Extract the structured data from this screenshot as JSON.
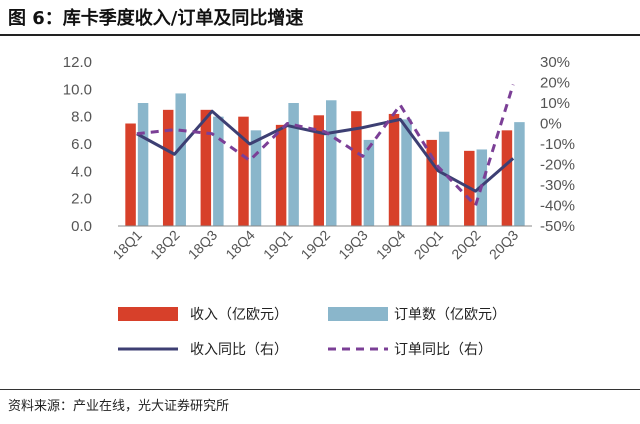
{
  "figure": {
    "title": "图 6：库卡季度收入/订单及同比增速",
    "source": "资料来源：产业在线，光大证券研究所"
  },
  "chart_data": {
    "type": "bar",
    "categories": [
      "18Q1",
      "18Q2",
      "18Q3",
      "18Q4",
      "19Q1",
      "19Q2",
      "19Q3",
      "19Q4",
      "20Q1",
      "20Q2",
      "20Q3"
    ],
    "y_left": {
      "ticks": [
        "0.0",
        "2.0",
        "4.0",
        "6.0",
        "8.0",
        "10.0",
        "12.0"
      ],
      "lim": [
        0,
        12
      ]
    },
    "y_right": {
      "ticks": [
        "30%",
        "20%",
        "10%",
        "0%",
        "-10%",
        "-20%",
        "-30%",
        "-40%",
        "-50%"
      ],
      "lim": [
        -50,
        30
      ]
    },
    "series": [
      {
        "name": "收入（亿欧元）",
        "kind": "bar",
        "axis": "left",
        "color": "#D7402A",
        "values": [
          7.5,
          8.5,
          8.5,
          8.0,
          7.4,
          8.1,
          8.4,
          8.2,
          6.3,
          5.5,
          7.0
        ]
      },
      {
        "name": "订单数（亿欧元）",
        "kind": "bar",
        "axis": "left",
        "color": "#8AB6CB",
        "values": [
          9.0,
          9.7,
          8.0,
          7.0,
          9.0,
          9.2,
          6.3,
          7.8,
          6.9,
          5.6,
          7.6
        ]
      },
      {
        "name": "收入同比（右）",
        "kind": "line",
        "axis": "right",
        "color": "#3D3F73",
        "dash": false,
        "values": [
          -5,
          -15,
          6,
          -10,
          -1,
          -5,
          -2,
          2,
          -23,
          -33,
          -17
        ]
      },
      {
        "name": "订单同比（右）",
        "kind": "line",
        "axis": "right",
        "color": "#7B3F96",
        "dash": true,
        "values": [
          -5,
          -3,
          -5,
          -18,
          0,
          -4,
          -16,
          9,
          -21,
          -40,
          19
        ]
      }
    ],
    "grid": false,
    "legend": "bottom"
  }
}
